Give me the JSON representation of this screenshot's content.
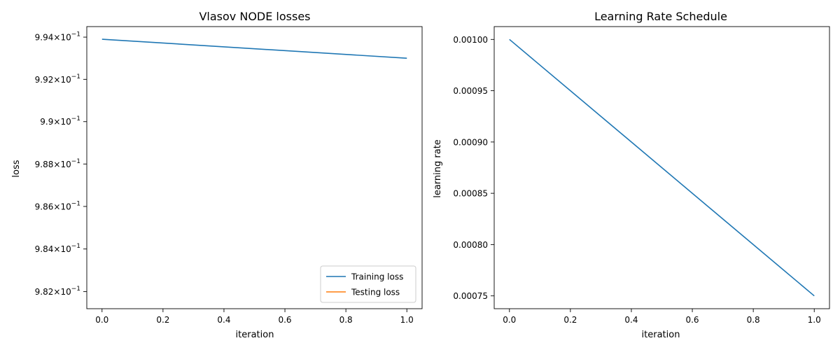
{
  "chart_data": [
    {
      "type": "line",
      "title": "Vlasov NODE losses",
      "xlabel": "iteration",
      "ylabel": "loss",
      "yscale": "log",
      "xlim": [
        -0.05,
        1.05
      ],
      "ylim": [
        0.9812,
        0.9945
      ],
      "x_ticks": [
        {
          "value": 0.0,
          "label": "0.0"
        },
        {
          "value": 0.2,
          "label": "0.2"
        },
        {
          "value": 0.4,
          "label": "0.4"
        },
        {
          "value": 0.6,
          "label": "0.6"
        },
        {
          "value": 0.8,
          "label": "0.8"
        },
        {
          "value": 1.0,
          "label": "1.0"
        }
      ],
      "y_ticks": [
        {
          "value": 0.994,
          "mantissa": "9.94",
          "exp": "−1"
        },
        {
          "value": 0.992,
          "mantissa": "9.92",
          "exp": "−1"
        },
        {
          "value": 0.99,
          "mantissa": "9.9",
          "exp": "−1"
        },
        {
          "value": 0.988,
          "mantissa": "9.88",
          "exp": "−1"
        },
        {
          "value": 0.986,
          "mantissa": "9.86",
          "exp": "−1"
        },
        {
          "value": 0.984,
          "mantissa": "9.84",
          "exp": "−1"
        },
        {
          "value": 0.982,
          "mantissa": "9.82",
          "exp": "−1"
        }
      ],
      "series": [
        {
          "name": "Training loss",
          "color": "#1f77b4",
          "x": [
            0,
            1
          ],
          "y": [
            0.9939,
            0.993
          ]
        },
        {
          "name": "Testing loss",
          "color": "#ff7f0e",
          "x": [],
          "y": []
        }
      ],
      "legend": "lower-right",
      "grid": false
    },
    {
      "type": "line",
      "title": "Learning Rate Schedule",
      "xlabel": "iteration",
      "ylabel": "learning rate",
      "xlim": [
        -0.05,
        1.05
      ],
      "ylim": [
        0.0007375,
        0.0010125
      ],
      "x_ticks": [
        {
          "value": 0.0,
          "label": "0.0"
        },
        {
          "value": 0.2,
          "label": "0.2"
        },
        {
          "value": 0.4,
          "label": "0.4"
        },
        {
          "value": 0.6,
          "label": "0.6"
        },
        {
          "value": 0.8,
          "label": "0.8"
        },
        {
          "value": 1.0,
          "label": "1.0"
        }
      ],
      "y_ticks": [
        {
          "value": 0.001,
          "label": "0.00100"
        },
        {
          "value": 0.00095,
          "label": "0.00095"
        },
        {
          "value": 0.0009,
          "label": "0.00090"
        },
        {
          "value": 0.00085,
          "label": "0.00085"
        },
        {
          "value": 0.0008,
          "label": "0.00080"
        },
        {
          "value": 0.00075,
          "label": "0.00075"
        }
      ],
      "series": [
        {
          "color": "#1f77b4",
          "x": [
            0,
            1
          ],
          "y": [
            0.001,
            0.00075
          ]
        }
      ],
      "grid": false
    }
  ]
}
